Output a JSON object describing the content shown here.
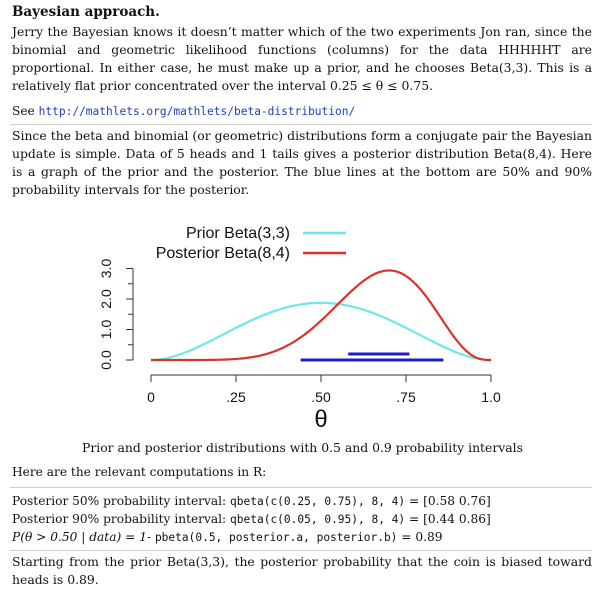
{
  "heading": "Bayesian approach.",
  "para1": "Jerry the Bayesian knows it doesn’t matter which of the two experiments Jon ran, since the binomial and geometric likelihood functions (columns) for the data HHHHHT are proportional. In either case, he must make up a prior, and he chooses Beta(3,3). This is a relatively flat prior concentrated over the interval 0.25 ≤ θ ≤ 0.75.",
  "see_prefix": "See",
  "see_url": "http://mathlets.org/mathlets/beta-distribution/",
  "para2": "Since the beta and binomial (or geometric) distributions form a conjugate pair the Bayesian update is simple. Data of 5 heads and 1 tails gives a posterior distribution Beta(8,4). Here is a graph of the prior and the posterior. The blue lines at the bottom are 50% and 90% probability intervals for the posterior.",
  "chart_data": {
    "type": "line",
    "x_label": "θ",
    "x_ticks": [
      "0",
      ".25",
      ".50",
      ".75",
      "1.0"
    ],
    "x_tick_values": [
      0,
      0.25,
      0.5,
      0.75,
      1.0
    ],
    "y_ticks": [
      "0.0",
      "1.0",
      "2.0",
      "3.0"
    ],
    "y_tick_values": [
      0,
      1,
      2,
      3
    ],
    "xlim": [
      0,
      1
    ],
    "ylim": [
      0,
      3
    ],
    "legend_position": "top-left",
    "series": [
      {
        "name": "Prior Beta(3,3)",
        "color": "#6ee6ea",
        "a": 3,
        "b": 3
      },
      {
        "name": "Posterior Beta(8,4)",
        "color": "#d9342b",
        "a": 8,
        "b": 4
      }
    ],
    "intervals": [
      {
        "label": "50%",
        "from": 0.58,
        "to": 0.76,
        "color": "#1e1ec8"
      },
      {
        "label": "90%",
        "from": 0.44,
        "to": 0.86,
        "color": "#1e1ec8"
      }
    ]
  },
  "caption": "Prior and posterior distributions with 0.5 and 0.9 probability intervals",
  "r_intro": "Here are the relevant computations in R:",
  "comp": [
    {
      "text": "Posterior 50% probability interval:",
      "code": "qbeta(c(0.25, 0.75), 8, 4)",
      "result": "= [0.58 0.76]"
    },
    {
      "text": "Posterior 90% probability interval:",
      "code": "qbeta(c(0.05, 0.95), 8, 4)",
      "result": "= [0.44 0.86]"
    },
    {
      "text": "P(θ > 0.50 | data) = 1-",
      "code": "pbeta(0.5, posterior.a, posterior.b)",
      "result": "= 0.89"
    }
  ],
  "conclusion": "Starting from the prior Beta(3,3), the posterior probability that the coin is biased toward heads is 0.89."
}
